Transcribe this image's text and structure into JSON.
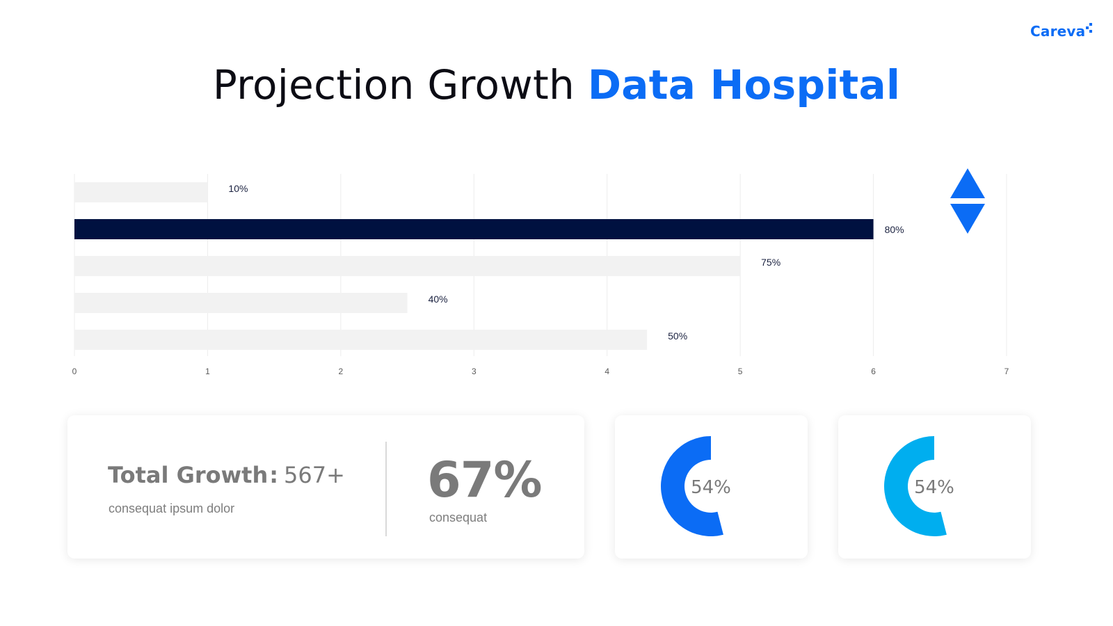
{
  "brand": {
    "name": "Careva",
    "color": "#0b6cf5"
  },
  "title": {
    "part1": "Projection Growth",
    "part2": "Data Hospital"
  },
  "chart_data": {
    "type": "bar",
    "orientation": "horizontal",
    "xlim": [
      0,
      7
    ],
    "x_ticks": [
      "0",
      "1",
      "2",
      "3",
      "4",
      "5",
      "6",
      "7"
    ],
    "grid": true,
    "values": [
      1,
      6,
      5,
      2.5,
      4.3
    ],
    "data_labels": [
      "10%",
      "80%",
      "75%",
      "40%",
      "50%"
    ],
    "highlight_index": 1,
    "colors": {
      "default": "#f2f2f2",
      "highlight": "#001140",
      "label": "#1b2240",
      "tick": "#595959",
      "grid": "#ececec"
    }
  },
  "indicator": {
    "icon": "up-down-arrows-icon",
    "color": "#0b6cf5"
  },
  "total_growth": {
    "label": "Total Growth",
    "colon": ":",
    "value": "567+",
    "subtitle": "consequat ipsum dolor"
  },
  "headline_stat": {
    "value": "67%",
    "subtitle": "consequat"
  },
  "donuts": [
    {
      "label": "54%",
      "percent": 54,
      "color": "#0b6cf5"
    },
    {
      "label": "54%",
      "percent": 54,
      "color": "#00aeef"
    }
  ]
}
